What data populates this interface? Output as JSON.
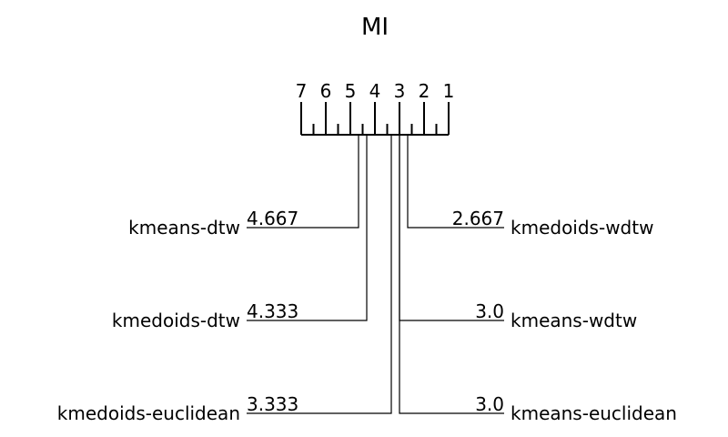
{
  "chart_data": {
    "type": "critical-difference",
    "title": "MI",
    "axis": {
      "min": 1,
      "max": 7,
      "reversed": true,
      "ticks": [
        "7",
        "6",
        "5",
        "4",
        "3",
        "2",
        "1"
      ]
    },
    "methods": [
      {
        "name": "kmeans-dtw",
        "rank": 4.667,
        "rank_label": "4.667",
        "side": "left"
      },
      {
        "name": "kmedoids-dtw",
        "rank": 4.333,
        "rank_label": "4.333",
        "side": "left"
      },
      {
        "name": "kmedoids-euclidean",
        "rank": 3.333,
        "rank_label": "3.333",
        "side": "left"
      },
      {
        "name": "kmedoids-wdtw",
        "rank": 2.667,
        "rank_label": "2.667",
        "side": "right"
      },
      {
        "name": "kmeans-wdtw",
        "rank": 3.0,
        "rank_label": "3.0",
        "side": "right"
      },
      {
        "name": "kmeans-euclidean",
        "rank": 3.0,
        "rank_label": "3.0",
        "side": "right"
      }
    ]
  }
}
